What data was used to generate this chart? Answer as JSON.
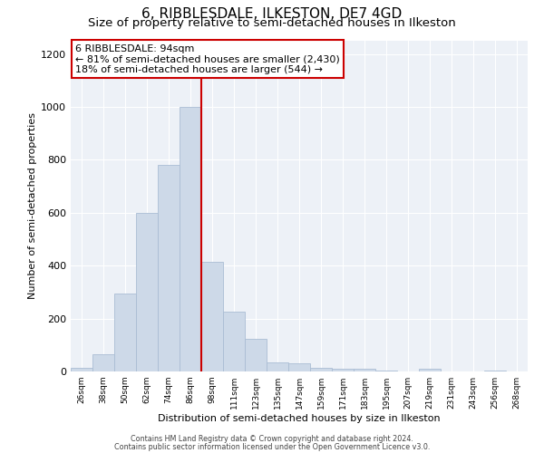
{
  "title": "6, RIBBLESDALE, ILKESTON, DE7 4GD",
  "subtitle": "Size of property relative to semi-detached houses in Ilkeston",
  "xlabel": "Distribution of semi-detached houses by size in Ilkeston",
  "ylabel": "Number of semi-detached properties",
  "categories": [
    "26sqm",
    "38sqm",
    "50sqm",
    "62sqm",
    "74sqm",
    "86sqm",
    "98sqm",
    "111sqm",
    "123sqm",
    "135sqm",
    "147sqm",
    "159sqm",
    "171sqm",
    "183sqm",
    "195sqm",
    "207sqm",
    "219sqm",
    "231sqm",
    "243sqm",
    "256sqm",
    "268sqm"
  ],
  "values": [
    15,
    65,
    295,
    600,
    780,
    1000,
    415,
    225,
    125,
    35,
    30,
    15,
    10,
    10,
    5,
    0,
    10,
    0,
    0,
    5,
    0
  ],
  "bar_color": "#cdd9e8",
  "bar_edge_color": "#aabdd4",
  "vline_color": "#cc0000",
  "vline_pos": 5.5,
  "annotation_title": "6 RIBBLESDALE: 94sqm",
  "annotation_line1": "← 81% of semi-detached houses are smaller (2,430)",
  "annotation_line2": "18% of semi-detached houses are larger (544) →",
  "annotation_box_color": "#ffffff",
  "annotation_box_edge": "#cc0000",
  "ylim": [
    0,
    1250
  ],
  "yticks": [
    0,
    200,
    400,
    600,
    800,
    1000,
    1200
  ],
  "footer1": "Contains HM Land Registry data © Crown copyright and database right 2024.",
  "footer2": "Contains public sector information licensed under the Open Government Licence v3.0.",
  "title_fontsize": 11,
  "subtitle_fontsize": 9.5,
  "fig_bg_color": "#ffffff",
  "axes_bg_color": "#edf1f7",
  "grid_color": "#ffffff"
}
